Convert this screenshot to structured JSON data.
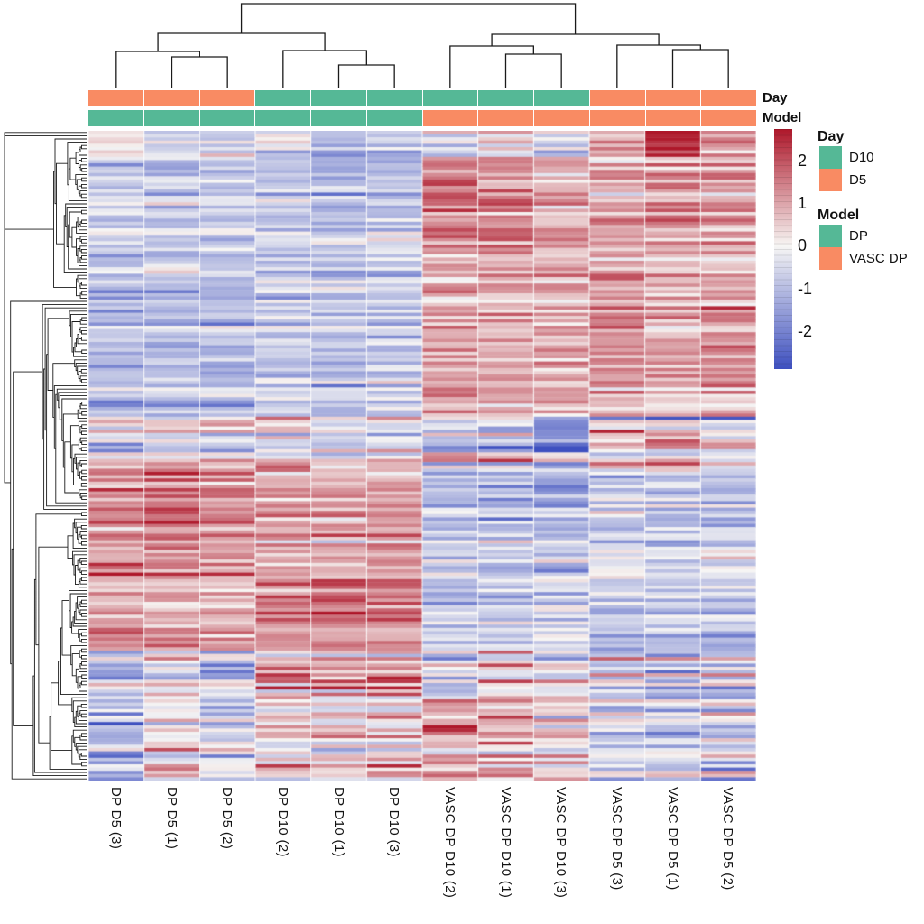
{
  "figure": {
    "background": "#ffffff"
  },
  "legend": {
    "day_title": "Day",
    "model_title": "Model",
    "day_items": [
      {
        "label": "D10",
        "color": "#55B896"
      },
      {
        "label": "D5",
        "color": "#F98B63"
      }
    ],
    "model_items": [
      {
        "label": "DP",
        "color": "#55B896"
      },
      {
        "label": "VASC DP",
        "color": "#F98B63"
      }
    ]
  },
  "chart_data": {
    "type": "heatmap",
    "title": "",
    "columns": [
      "DP D5 (3)",
      "DP D5 (1)",
      "DP D5 (2)",
      "DP D10 (2)",
      "DP D10 (1)",
      "DP D10 (3)",
      "VASC DP D10 (2)",
      "VASC DP D10 (1)",
      "VASC DP D10 (3)",
      "VASC DP D5 (3)",
      "VASC DP D5 (1)",
      "VASC DP D5 (2)"
    ],
    "n_rows": 200,
    "annotation_titles": {
      "day": "Day",
      "model": "Model"
    },
    "annotations": {
      "day": [
        "D5",
        "D5",
        "D5",
        "D10",
        "D10",
        "D10",
        "D10",
        "D10",
        "D10",
        "D5",
        "D5",
        "D5"
      ],
      "model": [
        "DP",
        "DP",
        "DP",
        "DP",
        "DP",
        "DP",
        "VASC DP",
        "VASC DP",
        "VASC DP",
        "VASC DP",
        "VASC DP",
        "VASC DP"
      ]
    },
    "annotation_colors": {
      "day": {
        "D10": "#55B896",
        "D5": "#F98B63"
      },
      "model": {
        "DP": "#55B896",
        "VASC DP": "#F98B63"
      }
    },
    "colormap": {
      "low": "#3E50C0",
      "mid": "#F7F6F4",
      "high": "#AE172A",
      "vmin": -2.9,
      "vmax": 2.75
    },
    "colorbar_ticks": [
      2,
      1,
      0,
      -1,
      -2
    ],
    "col_dendrogram": {
      "leaf_bottom": 97.5,
      "merges": [
        [
          "L1",
          "L2",
          63
        ],
        [
          "L0",
          "C0",
          57
        ],
        [
          "L4",
          "L5",
          72
        ],
        [
          "L3",
          "C2",
          56
        ],
        [
          "C1",
          "C3",
          37
        ],
        [
          "L7",
          "L8",
          60
        ],
        [
          "L6",
          "C5",
          51
        ],
        [
          "L10",
          "L11",
          55
        ],
        [
          "L9",
          "C7",
          50
        ],
        [
          "C6",
          "C8",
          38
        ],
        [
          "C4",
          "C9",
          4
        ]
      ]
    },
    "row_blocks": [
      {
        "rows": 8,
        "stripe": 0.45,
        "noise": 0.35,
        "means": [
          0.2,
          -0.4,
          -0.3,
          -0.3,
          -1.4,
          -0.9,
          -0.4,
          0.3,
          -0.5,
          0.9,
          2.3,
          0.9
        ]
      },
      {
        "rows": 30,
        "stripe": 0.4,
        "noise": 0.3,
        "means": [
          -0.7,
          -0.8,
          -0.7,
          -0.8,
          -0.9,
          -0.8,
          1.5,
          1.4,
          0.9,
          0.9,
          1.1,
          1.0
        ]
      },
      {
        "rows": 50,
        "stripe": 0.45,
        "noise": 0.3,
        "means": [
          -0.9,
          -0.8,
          -0.9,
          -0.7,
          -0.8,
          -0.7,
          0.8,
          0.8,
          0.7,
          1.0,
          0.7,
          0.9
        ]
      },
      {
        "rows": 16,
        "stripe": 0.7,
        "noise": 0.45,
        "means": [
          0.1,
          0.3,
          0.2,
          0.4,
          -0.1,
          0.0,
          -0.2,
          -0.3,
          -1.1,
          0.3,
          0.4,
          -0.2
        ]
      },
      {
        "rows": 34,
        "stripe": 0.5,
        "noise": 0.35,
        "means": [
          1.2,
          1.4,
          1.2,
          0.9,
          0.8,
          0.9,
          -0.6,
          -0.7,
          -0.8,
          -0.6,
          -0.7,
          -0.6
        ]
      },
      {
        "rows": 22,
        "stripe": 0.45,
        "noise": 0.35,
        "means": [
          0.8,
          0.7,
          0.6,
          1.5,
          1.6,
          1.5,
          -0.8,
          -0.7,
          -0.6,
          -0.7,
          -0.6,
          -0.8
        ]
      },
      {
        "rows": 15,
        "stripe": 0.8,
        "noise": 0.5,
        "means": [
          -0.4,
          0.2,
          -0.3,
          1.0,
          0.8,
          1.1,
          -0.5,
          0.3,
          -0.2,
          -0.3,
          -0.6,
          -0.4
        ]
      },
      {
        "rows": 25,
        "stripe": 0.8,
        "noise": 0.5,
        "means": [
          -0.6,
          0.3,
          -0.4,
          0.4,
          0.5,
          0.4,
          0.9,
          0.8,
          0.5,
          -0.5,
          -0.7,
          -0.6
        ]
      }
    ],
    "hotspots": [
      {
        "row": 1,
        "col": 10,
        "value": 2.6
      },
      {
        "row": 2,
        "col": 10,
        "value": 2.7
      },
      {
        "row": 3,
        "col": 10,
        "value": 2.4
      },
      {
        "row": 15,
        "col": 6,
        "value": 2.2
      },
      {
        "row": 16,
        "col": 6,
        "value": 2.3
      },
      {
        "row": 18,
        "col": 7,
        "value": 2.2
      },
      {
        "row": 20,
        "col": 6,
        "value": 2.1
      },
      {
        "row": 10,
        "col": 0,
        "value": -1.9
      },
      {
        "row": 38,
        "col": 0,
        "value": -1.8
      },
      {
        "row": 45,
        "col": 9,
        "value": 2.0
      },
      {
        "row": 60,
        "col": 9,
        "value": 2.1
      },
      {
        "row": 66,
        "col": 11,
        "value": 2.1
      },
      {
        "row": 78,
        "col": 11,
        "value": 2.0
      },
      {
        "row": 90,
        "col": 8,
        "value": -1.9
      },
      {
        "row": 91,
        "col": 8,
        "value": -2.0
      },
      {
        "row": 93,
        "col": 8,
        "value": -1.8
      },
      {
        "row": 92,
        "col": 9,
        "value": 2.6
      },
      {
        "row": 95,
        "col": 10,
        "value": 2.0
      },
      {
        "row": 120,
        "col": 2,
        "value": 2.2
      },
      {
        "row": 112,
        "col": 1,
        "value": 2.1
      },
      {
        "row": 144,
        "col": 4,
        "value": 2.3
      },
      {
        "row": 145,
        "col": 5,
        "value": 2.2
      },
      {
        "row": 150,
        "col": 3,
        "value": 2.1
      },
      {
        "row": 183,
        "col": 6,
        "value": 2.8
      },
      {
        "row": 184,
        "col": 6,
        "value": 2.5
      },
      {
        "row": 188,
        "col": 7,
        "value": 2.2
      },
      {
        "row": 180,
        "col": 7,
        "value": 2.3
      }
    ]
  }
}
